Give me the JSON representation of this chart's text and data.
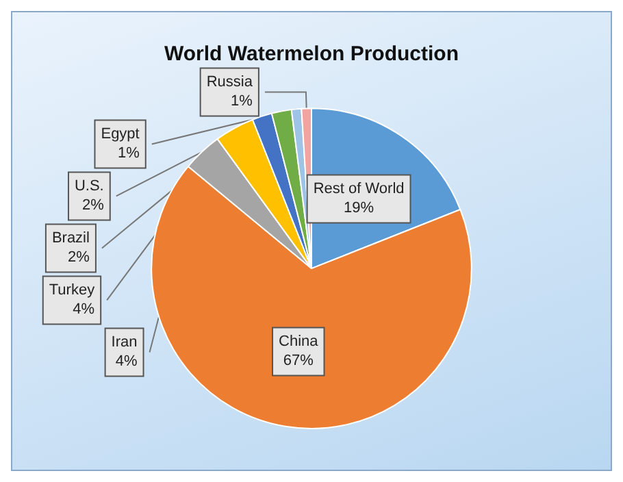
{
  "chart_data": {
    "type": "pie",
    "title": "World Watermelon Production",
    "categories": [
      "Rest of World",
      "China",
      "Iran",
      "Turkey",
      "Brazil",
      "U.S.",
      "Egypt",
      "Russia"
    ],
    "values": [
      19,
      67,
      4,
      4,
      2,
      2,
      1,
      1
    ],
    "colors": [
      "#5b9bd5",
      "#ed7d31",
      "#a5a5a5",
      "#ffc000",
      "#4472c4",
      "#70ad47",
      "#9dc3e6",
      "#f4a3a0"
    ],
    "value_labels": [
      "19%",
      "67%",
      "4%",
      "4%",
      "2%",
      "2%",
      "1%",
      "1%"
    ],
    "legend": false
  }
}
